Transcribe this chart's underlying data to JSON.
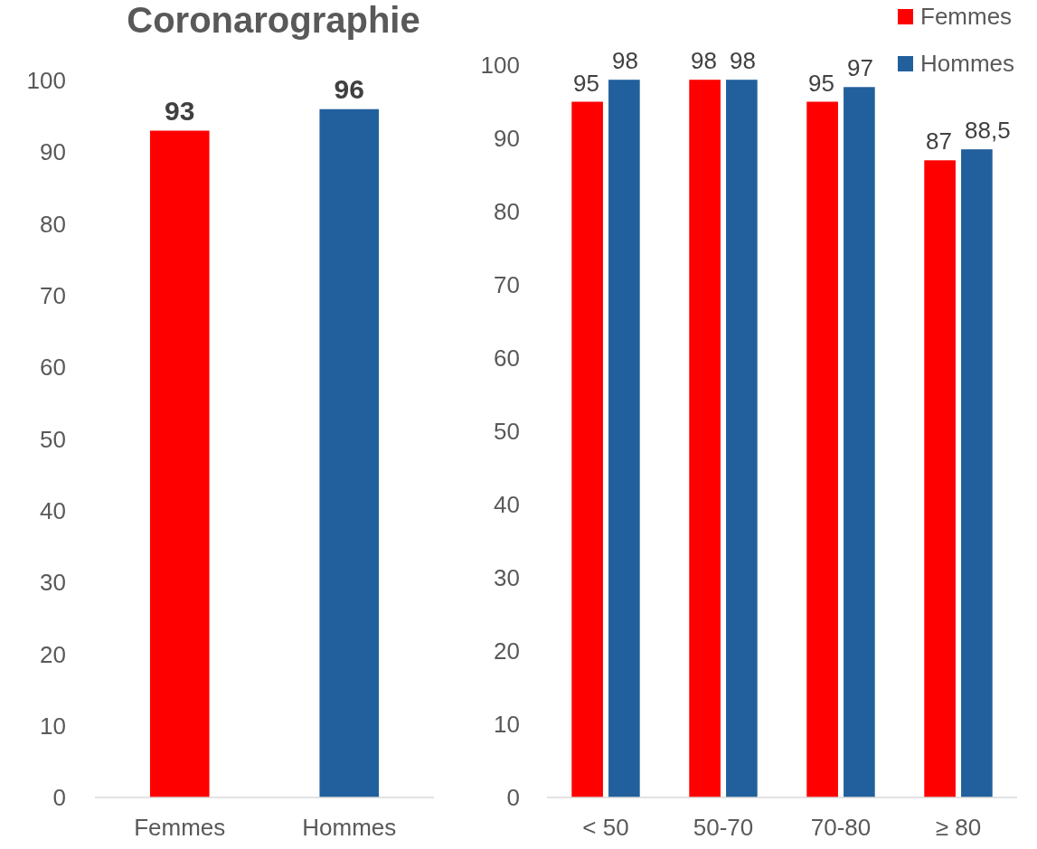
{
  "chart_data": [
    {
      "type": "bar",
      "title": "Coronarographie",
      "categories": [
        "Femmes",
        "Hommes"
      ],
      "values": [
        93,
        96
      ],
      "colors": [
        "#ff0000",
        "#21609c"
      ],
      "ylim": [
        0,
        100
      ],
      "yticks": [
        0,
        10,
        20,
        30,
        40,
        50,
        60,
        70,
        80,
        90,
        100
      ],
      "data_labels": true,
      "grid": false
    },
    {
      "type": "bar",
      "categories": [
        "< 50",
        "50-70",
        "70-80",
        "≥ 80"
      ],
      "series": [
        {
          "name": "Femmes",
          "color": "#ff0000",
          "values": [
            95,
            98,
            95,
            87
          ],
          "value_labels": [
            "95",
            "98",
            "95",
            "87"
          ]
        },
        {
          "name": "Hommes",
          "color": "#21609c",
          "values": [
            98,
            98,
            97,
            88.5
          ],
          "value_labels": [
            "98",
            "98",
            "97",
            "88,5"
          ]
        }
      ],
      "ylim": [
        0,
        100
      ],
      "yticks": [
        0,
        10,
        20,
        30,
        40,
        50,
        60,
        70,
        80,
        90,
        100
      ],
      "legend": "top right",
      "grid": false
    }
  ]
}
